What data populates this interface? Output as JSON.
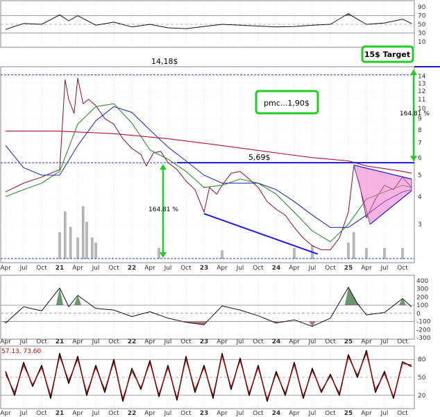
{
  "chart_data": {
    "type": "line",
    "title": "",
    "scale": "log",
    "x_axis": {
      "labels": [
        "Apr",
        "Jul",
        "Oct",
        "21",
        "Apr",
        "Jul",
        "Oct",
        "22",
        "Apr",
        "Jul",
        "Oct",
        "23",
        "Apr",
        "Jul",
        "Oct",
        "24",
        "Apr",
        "Jul",
        "Oct",
        "25",
        "Apr",
        "Jul",
        "Oct"
      ],
      "year_labels": [
        "21",
        "22",
        "23",
        "24",
        "25"
      ]
    },
    "price_axis": {
      "ticks": [
        3,
        4,
        5,
        6,
        7,
        8,
        9,
        10,
        11,
        12,
        13,
        14
      ],
      "range": [
        2.1,
        15
      ]
    },
    "top_panel_axis": {
      "ticks": [
        10,
        30,
        50,
        70,
        90
      ],
      "range": [
        0,
        100
      ]
    },
    "momentum_axis": {
      "ticks": [
        -300,
        -200,
        -100,
        0,
        100,
        200,
        300,
        400
      ],
      "range": [
        -300,
        450
      ]
    },
    "oscillator_axis": {
      "ticks": [
        20,
        50,
        80
      ],
      "range": [
        0,
        100
      ]
    },
    "oscillator_values_label": "57.13, 73.60",
    "series": [
      {
        "color": "#8b0a2a",
        "points": [
          [
            0,
            4.2
          ],
          [
            1,
            4.6
          ],
          [
            2,
            4.9
          ],
          [
            3,
            5.3
          ],
          [
            3.3,
            13.5
          ],
          [
            3.5,
            11
          ],
          [
            3.8,
            9.5
          ],
          [
            4,
            13.7
          ],
          [
            4.3,
            10.5
          ],
          [
            4.6,
            11.0
          ],
          [
            5,
            10.3
          ],
          [
            5.5,
            9.0
          ],
          [
            6,
            8.5
          ],
          [
            6.5,
            7.3
          ],
          [
            7,
            6.6
          ],
          [
            7.5,
            6.2
          ],
          [
            7.8,
            5.5
          ],
          [
            8.2,
            6.3
          ],
          [
            8.6,
            6.4
          ],
          [
            9,
            5.7
          ],
          [
            9.5,
            5.3
          ],
          [
            10,
            4.7
          ],
          [
            10.5,
            4.3
          ],
          [
            11,
            3.4
          ],
          [
            11.3,
            4.4
          ],
          [
            11.7,
            4.1
          ],
          [
            12,
            4.5
          ],
          [
            12.5,
            5.1
          ],
          [
            13,
            5.2
          ],
          [
            13.5,
            4.8
          ],
          [
            14,
            4.4
          ],
          [
            14.5,
            3.8
          ],
          [
            15,
            3.5
          ],
          [
            15.5,
            3.3
          ],
          [
            16,
            2.9
          ],
          [
            16.5,
            2.6
          ],
          [
            17,
            2.4
          ],
          [
            17.5,
            2.3
          ],
          [
            18,
            2.3
          ],
          [
            18.5,
            2.6
          ],
          [
            19,
            3.4
          ],
          [
            19.3,
            5.5
          ],
          [
            19.6,
            4.6
          ],
          [
            20,
            3.2
          ],
          [
            20.5,
            3.9
          ],
          [
            21,
            4.5
          ],
          [
            21.5,
            4.3
          ],
          [
            22,
            4.9
          ],
          [
            22.5,
            4.4
          ]
        ]
      },
      {
        "color": "#2e8b2e",
        "points": [
          [
            0,
            4.0
          ],
          [
            1,
            4.3
          ],
          [
            2,
            4.6
          ],
          [
            3,
            5.2
          ],
          [
            4,
            8.5
          ],
          [
            5,
            10.2
          ],
          [
            6,
            10.5
          ],
          [
            7,
            8.6
          ],
          [
            8,
            6.5
          ],
          [
            9,
            5.9
          ],
          [
            10,
            5.2
          ],
          [
            11,
            4.4
          ],
          [
            12,
            4.5
          ],
          [
            13,
            4.8
          ],
          [
            14,
            4.6
          ],
          [
            15,
            4.1
          ],
          [
            16,
            3.4
          ],
          [
            17,
            2.8
          ],
          [
            18,
            2.5
          ],
          [
            19,
            3.0
          ],
          [
            20,
            3.9
          ],
          [
            21,
            4.2
          ],
          [
            22,
            4.5
          ],
          [
            22.5,
            4.4
          ]
        ]
      },
      {
        "color": "#2233aa",
        "points": [
          [
            0,
            6.8
          ],
          [
            1,
            5.4
          ],
          [
            2,
            5.0
          ],
          [
            3,
            5.0
          ],
          [
            4,
            6.8
          ],
          [
            5,
            8.8
          ],
          [
            6,
            10.2
          ],
          [
            7,
            9.6
          ],
          [
            8,
            8.0
          ],
          [
            9,
            6.7
          ],
          [
            10,
            5.8
          ],
          [
            11,
            5.0
          ],
          [
            12,
            4.6
          ],
          [
            13,
            4.6
          ],
          [
            14,
            4.6
          ],
          [
            15,
            4.3
          ],
          [
            16,
            3.8
          ],
          [
            17,
            3.3
          ],
          [
            18,
            2.9
          ],
          [
            19,
            2.9
          ],
          [
            20,
            3.3
          ],
          [
            21,
            3.8
          ],
          [
            22,
            4.2
          ],
          [
            22.5,
            4.3
          ]
        ]
      },
      {
        "color": "#b01030",
        "points": [
          [
            0,
            7.9
          ],
          [
            3,
            7.9
          ],
          [
            6,
            7.7
          ],
          [
            9,
            7.3
          ],
          [
            12,
            6.8
          ],
          [
            15,
            6.3
          ],
          [
            17,
            6.0
          ],
          [
            19,
            5.8
          ],
          [
            20,
            5.5
          ],
          [
            22,
            5.2
          ],
          [
            22.5,
            5.1
          ]
        ]
      }
    ],
    "volume_bars": [
      [
        3,
        0.5
      ],
      [
        3.3,
        0.9
      ],
      [
        3.6,
        0.6
      ],
      [
        4,
        0.4
      ],
      [
        4.3,
        1.0
      ],
      [
        4.5,
        0.7
      ],
      [
        4.8,
        0.4
      ],
      [
        5,
        0.3
      ],
      [
        8.5,
        0.2
      ],
      [
        12,
        0.15
      ],
      [
        16,
        0.2
      ],
      [
        17,
        0.25
      ],
      [
        19,
        0.3
      ],
      [
        19.3,
        0.5
      ],
      [
        20,
        0.2
      ],
      [
        21,
        0.2
      ],
      [
        22,
        0.2
      ]
    ],
    "top_oscillator": [
      [
        0,
        38
      ],
      [
        1,
        52
      ],
      [
        2,
        50
      ],
      [
        3,
        72
      ],
      [
        3.5,
        58
      ],
      [
        4,
        70
      ],
      [
        5,
        48
      ],
      [
        6,
        55
      ],
      [
        7,
        44
      ],
      [
        8,
        50
      ],
      [
        9,
        42
      ],
      [
        10,
        40
      ],
      [
        11,
        45
      ],
      [
        12,
        50
      ],
      [
        13,
        48
      ],
      [
        14,
        46
      ],
      [
        15,
        44
      ],
      [
        16,
        45
      ],
      [
        17,
        48
      ],
      [
        18,
        50
      ],
      [
        19,
        75
      ],
      [
        19.5,
        62
      ],
      [
        20,
        50
      ],
      [
        21,
        53
      ],
      [
        22,
        62
      ],
      [
        22.5,
        52
      ]
    ],
    "momentum": [
      [
        0,
        -120
      ],
      [
        1,
        80
      ],
      [
        2,
        30
      ],
      [
        3,
        310
      ],
      [
        3.5,
        80
      ],
      [
        4,
        220
      ],
      [
        5,
        60
      ],
      [
        6,
        40
      ],
      [
        7,
        -40
      ],
      [
        8,
        20
      ],
      [
        9,
        -60
      ],
      [
        10,
        -110
      ],
      [
        11,
        -140
      ],
      [
        12,
        90
      ],
      [
        13,
        40
      ],
      [
        14,
        -30
      ],
      [
        15,
        -120
      ],
      [
        16,
        -80
      ],
      [
        17,
        -160
      ],
      [
        18,
        -60
      ],
      [
        19,
        320
      ],
      [
        19.5,
        120
      ],
      [
        20,
        -20
      ],
      [
        21,
        10
      ],
      [
        22,
        180
      ],
      [
        22.5,
        80
      ]
    ],
    "oscillator_k": [
      [
        0,
        60
      ],
      [
        0.5,
        20
      ],
      [
        1,
        75
      ],
      [
        1.5,
        35
      ],
      [
        2,
        70
      ],
      [
        2.5,
        15
      ],
      [
        3,
        90
      ],
      [
        3.5,
        40
      ],
      [
        4,
        85
      ],
      [
        4.5,
        20
      ],
      [
        5,
        70
      ],
      [
        5.5,
        25
      ],
      [
        6,
        80
      ],
      [
        6.5,
        10
      ],
      [
        7,
        65
      ],
      [
        7.5,
        30
      ],
      [
        8,
        78
      ],
      [
        8.5,
        18
      ],
      [
        9,
        70
      ],
      [
        9.5,
        12
      ],
      [
        10,
        85
      ],
      [
        10.5,
        25
      ],
      [
        11,
        70
      ],
      [
        11.5,
        15
      ],
      [
        12,
        90
      ],
      [
        12.5,
        30
      ],
      [
        13,
        82
      ],
      [
        13.5,
        20
      ],
      [
        14,
        70
      ],
      [
        14.5,
        10
      ],
      [
        15,
        60
      ],
      [
        15.5,
        20
      ],
      [
        16,
        75
      ],
      [
        16.5,
        15
      ],
      [
        17,
        65
      ],
      [
        17.5,
        25
      ],
      [
        18,
        55
      ],
      [
        18.5,
        20
      ],
      [
        19,
        88
      ],
      [
        19.5,
        50
      ],
      [
        20,
        95
      ],
      [
        20.5,
        25
      ],
      [
        21,
        60
      ],
      [
        21.5,
        15
      ],
      [
        22,
        76
      ],
      [
        22.5,
        68
      ]
    ],
    "oscillator_d": [
      [
        0,
        55
      ],
      [
        0.5,
        25
      ],
      [
        1,
        70
      ],
      [
        1.5,
        38
      ],
      [
        2,
        66
      ],
      [
        2.5,
        20
      ],
      [
        3,
        85
      ],
      [
        3.5,
        45
      ],
      [
        4,
        80
      ],
      [
        4.5,
        25
      ],
      [
        5,
        66
      ],
      [
        5.5,
        30
      ],
      [
        6,
        75
      ],
      [
        6.5,
        15
      ],
      [
        7,
        60
      ],
      [
        7.5,
        33
      ],
      [
        8,
        74
      ],
      [
        8.5,
        22
      ],
      [
        9,
        66
      ],
      [
        9.5,
        16
      ],
      [
        10,
        80
      ],
      [
        10.5,
        30
      ],
      [
        11,
        66
      ],
      [
        11.5,
        20
      ],
      [
        12,
        86
      ],
      [
        12.5,
        34
      ],
      [
        13,
        78
      ],
      [
        13.5,
        24
      ],
      [
        14,
        66
      ],
      [
        14.5,
        14
      ],
      [
        15,
        56
      ],
      [
        15.5,
        24
      ],
      [
        16,
        71
      ],
      [
        16.5,
        19
      ],
      [
        17,
        61
      ],
      [
        17.5,
        28
      ],
      [
        18,
        52
      ],
      [
        18.5,
        24
      ],
      [
        19,
        84
      ],
      [
        19.5,
        54
      ],
      [
        20,
        90
      ],
      [
        20.5,
        30
      ],
      [
        21,
        56
      ],
      [
        21.5,
        18
      ],
      [
        22,
        73
      ],
      [
        22.5,
        71
      ]
    ]
  },
  "annotations": {
    "target_box": "15$ Target",
    "ath_label": "14,18$",
    "pmc_box": "pmc...1,90$",
    "resistance_label": "5,69$",
    "pct_left": "164.81 %",
    "pct_right": "164.81 %"
  },
  "levels": {
    "ath_price": 14.18,
    "resistance_price": 5.69,
    "target_price": 15
  },
  "colors": {
    "green_box": "#22cc22",
    "price": "#8b0a2a",
    "fast_ma": "#2e8b2e",
    "slow_ma": "#2233aa",
    "long_ma": "#b01030",
    "trendline": "#1a1aee",
    "triangle_fill": "#ee77cc"
  }
}
